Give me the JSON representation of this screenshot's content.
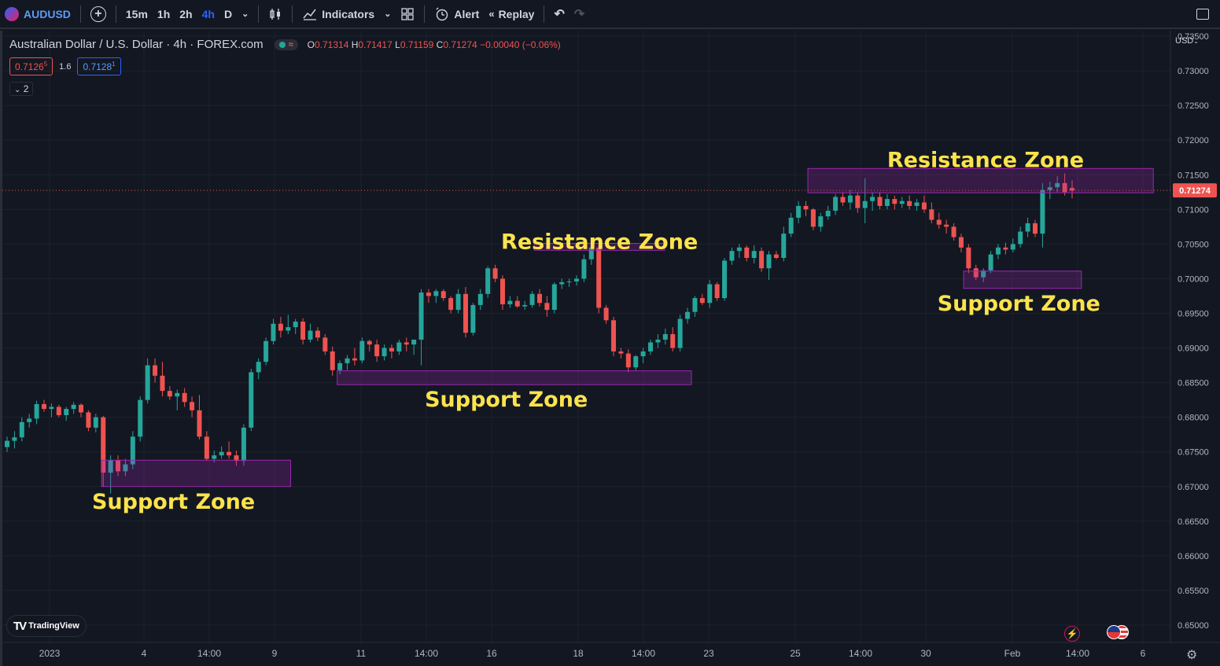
{
  "toolbar": {
    "symbol": "AUDUSD",
    "intervals": [
      "15m",
      "1h",
      "2h",
      "4h",
      "D"
    ],
    "active_interval": "4h",
    "indicators_label": "Indicators",
    "alert_label": "Alert",
    "replay_label": "Replay"
  },
  "legend": {
    "title": "Australian Dollar / U.S. Dollar · 4h · FOREX.com",
    "toggle_icon": "≈",
    "open_label": "O",
    "open": "0.71314",
    "high_label": "H",
    "high": "0.71417",
    "low_label": "L",
    "low": "0.71159",
    "close_label": "C",
    "close": "0.71274",
    "change": "−0.00040 (−0.06%)",
    "sell_price": "0.7126",
    "sell_price_sup": "5",
    "spread": "1.6",
    "buy_price": "0.7128",
    "buy_price_sup": "1",
    "collapse_count": "2"
  },
  "currency": "USD",
  "branding": "TradingView",
  "chart_data": {
    "type": "candlestick",
    "y_range": [
      0.6475,
      0.7358
    ],
    "y_ticks": [
      "0.73500",
      "0.73000",
      "0.72500",
      "0.72000",
      "0.71500",
      "0.71000",
      "0.70500",
      "0.70000",
      "0.69500",
      "0.69000",
      "0.68500",
      "0.68000",
      "0.67500",
      "0.67000",
      "0.66500",
      "0.66000",
      "0.65500",
      "0.65000"
    ],
    "x_ticks": [
      "2023",
      "4",
      "14:00",
      "9",
      "11",
      "14:00",
      "16",
      "18",
      "14:00",
      "23",
      "25",
      "14:00",
      "30",
      "Feb",
      "14:00",
      "6"
    ],
    "current_price": "0.71274",
    "colors": {
      "up": "#26a69a",
      "down": "#ef5350",
      "zone_fill": "rgba(156,39,176,0.25)",
      "zone_border": "#9c27b0",
      "annotation": "#fbe34b",
      "price_line": "#ef5350"
    },
    "zones": [
      {
        "label": "Support Zone",
        "from_price": 0.6738,
        "to_price": 0.67
      },
      {
        "label": "Support Zone",
        "from_price": 0.6867,
        "to_price": 0.6847
      },
      {
        "label": "Resistance Zone",
        "from_price": 0.7051,
        "to_price": 0.7041
      },
      {
        "label": "Resistance Zone",
        "from_price": 0.7159,
        "to_price": 0.7124
      },
      {
        "label": "Support Zone",
        "from_price": 0.7011,
        "to_price": 0.6986
      }
    ],
    "candles": [
      [
        0.6757,
        0.6772,
        0.675,
        0.6766
      ],
      [
        0.6766,
        0.678,
        0.6755,
        0.6771
      ],
      [
        0.6771,
        0.68,
        0.6765,
        0.6793
      ],
      [
        0.6793,
        0.6805,
        0.6785,
        0.6798
      ],
      [
        0.6798,
        0.6824,
        0.679,
        0.6819
      ],
      [
        0.6819,
        0.6825,
        0.6808,
        0.6812
      ],
      [
        0.6812,
        0.682,
        0.68,
        0.6815
      ],
      [
        0.6815,
        0.6818,
        0.68,
        0.6803
      ],
      [
        0.6803,
        0.6815,
        0.6795,
        0.6812
      ],
      [
        0.6812,
        0.6822,
        0.6805,
        0.6818
      ],
      [
        0.6818,
        0.682,
        0.68,
        0.6807
      ],
      [
        0.6807,
        0.681,
        0.678,
        0.6785
      ],
      [
        0.6785,
        0.6805,
        0.6778,
        0.68
      ],
      [
        0.68,
        0.6802,
        0.67,
        0.672
      ],
      [
        0.672,
        0.6745,
        0.669,
        0.6738
      ],
      [
        0.6738,
        0.6745,
        0.6715,
        0.6722
      ],
      [
        0.6722,
        0.674,
        0.6715,
        0.6732
      ],
      [
        0.6732,
        0.678,
        0.6725,
        0.6772
      ],
      [
        0.6772,
        0.683,
        0.6765,
        0.6825
      ],
      [
        0.6825,
        0.6885,
        0.682,
        0.6875
      ],
      [
        0.6875,
        0.6885,
        0.685,
        0.686
      ],
      [
        0.686,
        0.688,
        0.683,
        0.6838
      ],
      [
        0.6838,
        0.6845,
        0.6825,
        0.683
      ],
      [
        0.683,
        0.684,
        0.681,
        0.6835
      ],
      [
        0.6835,
        0.6842,
        0.6815,
        0.6822
      ],
      [
        0.6822,
        0.683,
        0.68,
        0.681
      ],
      [
        0.681,
        0.6832,
        0.6768,
        0.6772
      ],
      [
        0.6772,
        0.678,
        0.6737,
        0.674
      ],
      [
        0.674,
        0.6752,
        0.6735,
        0.6745
      ],
      [
        0.6745,
        0.6758,
        0.674,
        0.675
      ],
      [
        0.675,
        0.6765,
        0.674,
        0.6745
      ],
      [
        0.6745,
        0.6752,
        0.673,
        0.6737
      ],
      [
        0.6737,
        0.679,
        0.673,
        0.6785
      ],
      [
        0.6785,
        0.687,
        0.678,
        0.6865
      ],
      [
        0.6865,
        0.6885,
        0.6855,
        0.688
      ],
      [
        0.688,
        0.6915,
        0.6875,
        0.691
      ],
      [
        0.691,
        0.6942,
        0.6905,
        0.6935
      ],
      [
        0.6935,
        0.6945,
        0.6915,
        0.6925
      ],
      [
        0.6925,
        0.6948,
        0.692,
        0.693
      ],
      [
        0.693,
        0.6942,
        0.692,
        0.6938
      ],
      [
        0.6938,
        0.6943,
        0.6905,
        0.6912
      ],
      [
        0.6912,
        0.6935,
        0.6908,
        0.6925
      ],
      [
        0.6925,
        0.693,
        0.691,
        0.6915
      ],
      [
        0.6915,
        0.692,
        0.689,
        0.6895
      ],
      [
        0.6895,
        0.6902,
        0.686,
        0.6868
      ],
      [
        0.6868,
        0.6882,
        0.6862,
        0.6878
      ],
      [
        0.6878,
        0.689,
        0.6868,
        0.6885
      ],
      [
        0.6885,
        0.69,
        0.6875,
        0.6882
      ],
      [
        0.6882,
        0.6915,
        0.6878,
        0.691
      ],
      [
        0.691,
        0.6912,
        0.6895,
        0.6905
      ],
      [
        0.6905,
        0.6912,
        0.688,
        0.6888
      ],
      [
        0.6888,
        0.6905,
        0.6882,
        0.69
      ],
      [
        0.69,
        0.6905,
        0.6885,
        0.6895
      ],
      [
        0.6895,
        0.6912,
        0.689,
        0.6908
      ],
      [
        0.6908,
        0.6915,
        0.6895,
        0.6905
      ],
      [
        0.6905,
        0.6912,
        0.689,
        0.6912
      ],
      [
        0.6912,
        0.6985,
        0.6875,
        0.698
      ],
      [
        0.698,
        0.6985,
        0.6965,
        0.6975
      ],
      [
        0.6975,
        0.6985,
        0.6965,
        0.6982
      ],
      [
        0.6982,
        0.6985,
        0.6968,
        0.6972
      ],
      [
        0.6972,
        0.6975,
        0.695,
        0.6955
      ],
      [
        0.6955,
        0.6985,
        0.695,
        0.6978
      ],
      [
        0.6978,
        0.6988,
        0.6915,
        0.6922
      ],
      [
        0.6922,
        0.6965,
        0.6918,
        0.6962
      ],
      [
        0.6962,
        0.6985,
        0.6955,
        0.6978
      ],
      [
        0.6978,
        0.7018,
        0.6972,
        0.7015
      ],
      [
        0.7015,
        0.702,
        0.6995,
        0.7
      ],
      [
        0.7,
        0.7005,
        0.6955,
        0.6963
      ],
      [
        0.6963,
        0.6975,
        0.6958,
        0.6968
      ],
      [
        0.6968,
        0.6975,
        0.6958,
        0.696
      ],
      [
        0.696,
        0.6968,
        0.6955,
        0.6962
      ],
      [
        0.6962,
        0.6982,
        0.6958,
        0.6978
      ],
      [
        0.6978,
        0.6985,
        0.696,
        0.6965
      ],
      [
        0.6965,
        0.6975,
        0.6945,
        0.6955
      ],
      [
        0.6955,
        0.6995,
        0.695,
        0.6992
      ],
      [
        0.6992,
        0.7,
        0.6985,
        0.6995
      ],
      [
        0.6995,
        0.7,
        0.6988,
        0.6996
      ],
      [
        0.6996,
        0.7005,
        0.699,
        0.7
      ],
      [
        0.7,
        0.7035,
        0.6995,
        0.7028
      ],
      [
        0.7028,
        0.7052,
        0.702,
        0.7045
      ],
      [
        0.7045,
        0.705,
        0.695,
        0.6958
      ],
      [
        0.6958,
        0.6962,
        0.6935,
        0.694
      ],
      [
        0.694,
        0.6945,
        0.6888,
        0.6895
      ],
      [
        0.6895,
        0.69,
        0.6885,
        0.6892
      ],
      [
        0.6892,
        0.6898,
        0.6865,
        0.6872
      ],
      [
        0.6872,
        0.689,
        0.6868,
        0.6888
      ],
      [
        0.6888,
        0.69,
        0.6878,
        0.6895
      ],
      [
        0.6895,
        0.6912,
        0.689,
        0.6908
      ],
      [
        0.6908,
        0.692,
        0.69,
        0.6912
      ],
      [
        0.6912,
        0.6928,
        0.6905,
        0.692
      ],
      [
        0.692,
        0.693,
        0.6895,
        0.69
      ],
      [
        0.69,
        0.6948,
        0.6895,
        0.6942
      ],
      [
        0.6942,
        0.6958,
        0.6935,
        0.6952
      ],
      [
        0.6952,
        0.6975,
        0.6945,
        0.6972
      ],
      [
        0.6972,
        0.6978,
        0.6962,
        0.6965
      ],
      [
        0.6965,
        0.6998,
        0.6958,
        0.6992
      ],
      [
        0.6992,
        0.6995,
        0.6968,
        0.6972
      ],
      [
        0.6972,
        0.703,
        0.6968,
        0.7026
      ],
      [
        0.7026,
        0.7045,
        0.702,
        0.704
      ],
      [
        0.704,
        0.705,
        0.703,
        0.7045
      ],
      [
        0.7045,
        0.7048,
        0.7025,
        0.703
      ],
      [
        0.703,
        0.7048,
        0.7022,
        0.704
      ],
      [
        0.704,
        0.7045,
        0.701,
        0.7015
      ],
      [
        0.7015,
        0.704,
        0.6998,
        0.7035
      ],
      [
        0.7035,
        0.704,
        0.7028,
        0.703
      ],
      [
        0.703,
        0.7075,
        0.7025,
        0.7065
      ],
      [
        0.7065,
        0.7095,
        0.706,
        0.7088
      ],
      [
        0.7088,
        0.7112,
        0.708,
        0.7105
      ],
      [
        0.7105,
        0.7112,
        0.709,
        0.71
      ],
      [
        0.71,
        0.7102,
        0.707,
        0.7075
      ],
      [
        0.7075,
        0.7095,
        0.7068,
        0.709
      ],
      [
        0.709,
        0.7105,
        0.7085,
        0.7098
      ],
      [
        0.7098,
        0.7122,
        0.7092,
        0.7118
      ],
      [
        0.7118,
        0.7125,
        0.7105,
        0.711
      ],
      [
        0.711,
        0.7128,
        0.71,
        0.712
      ],
      [
        0.712,
        0.7125,
        0.7095,
        0.7102
      ],
      [
        0.7102,
        0.7145,
        0.708,
        0.7112
      ],
      [
        0.7112,
        0.7125,
        0.7098,
        0.7118
      ],
      [
        0.7118,
        0.7125,
        0.71,
        0.7105
      ],
      [
        0.7105,
        0.7122,
        0.71,
        0.7115
      ],
      [
        0.7115,
        0.712,
        0.71,
        0.7108
      ],
      [
        0.7108,
        0.7118,
        0.7102,
        0.7112
      ],
      [
        0.7112,
        0.712,
        0.71,
        0.7105
      ],
      [
        0.7105,
        0.7115,
        0.7098,
        0.711
      ],
      [
        0.711,
        0.712,
        0.7095,
        0.71
      ],
      [
        0.71,
        0.711,
        0.708,
        0.7085
      ],
      [
        0.7085,
        0.7095,
        0.7072,
        0.7078
      ],
      [
        0.7078,
        0.7085,
        0.7065,
        0.7075
      ],
      [
        0.7075,
        0.708,
        0.7055,
        0.706
      ],
      [
        0.706,
        0.7065,
        0.7038,
        0.7045
      ],
      [
        0.7045,
        0.705,
        0.7008,
        0.7015
      ],
      [
        0.7015,
        0.702,
        0.6998,
        0.7002
      ],
      [
        0.7002,
        0.7015,
        0.6995,
        0.7012
      ],
      [
        0.7012,
        0.704,
        0.7008,
        0.7035
      ],
      [
        0.7035,
        0.705,
        0.7028,
        0.7045
      ],
      [
        0.7045,
        0.7052,
        0.7035,
        0.7042
      ],
      [
        0.7042,
        0.7058,
        0.7038,
        0.705
      ],
      [
        0.705,
        0.7075,
        0.7045,
        0.7068
      ],
      [
        0.7068,
        0.7088,
        0.706,
        0.708
      ],
      [
        0.708,
        0.7085,
        0.706,
        0.7065
      ],
      [
        0.7065,
        0.7138,
        0.7045,
        0.7128
      ],
      [
        0.7128,
        0.714,
        0.7115,
        0.7132
      ],
      [
        0.7132,
        0.7148,
        0.7125,
        0.7138
      ],
      [
        0.7138,
        0.7152,
        0.712,
        0.7125
      ],
      [
        0.7131,
        0.7142,
        0.7116,
        0.7127
      ]
    ]
  }
}
